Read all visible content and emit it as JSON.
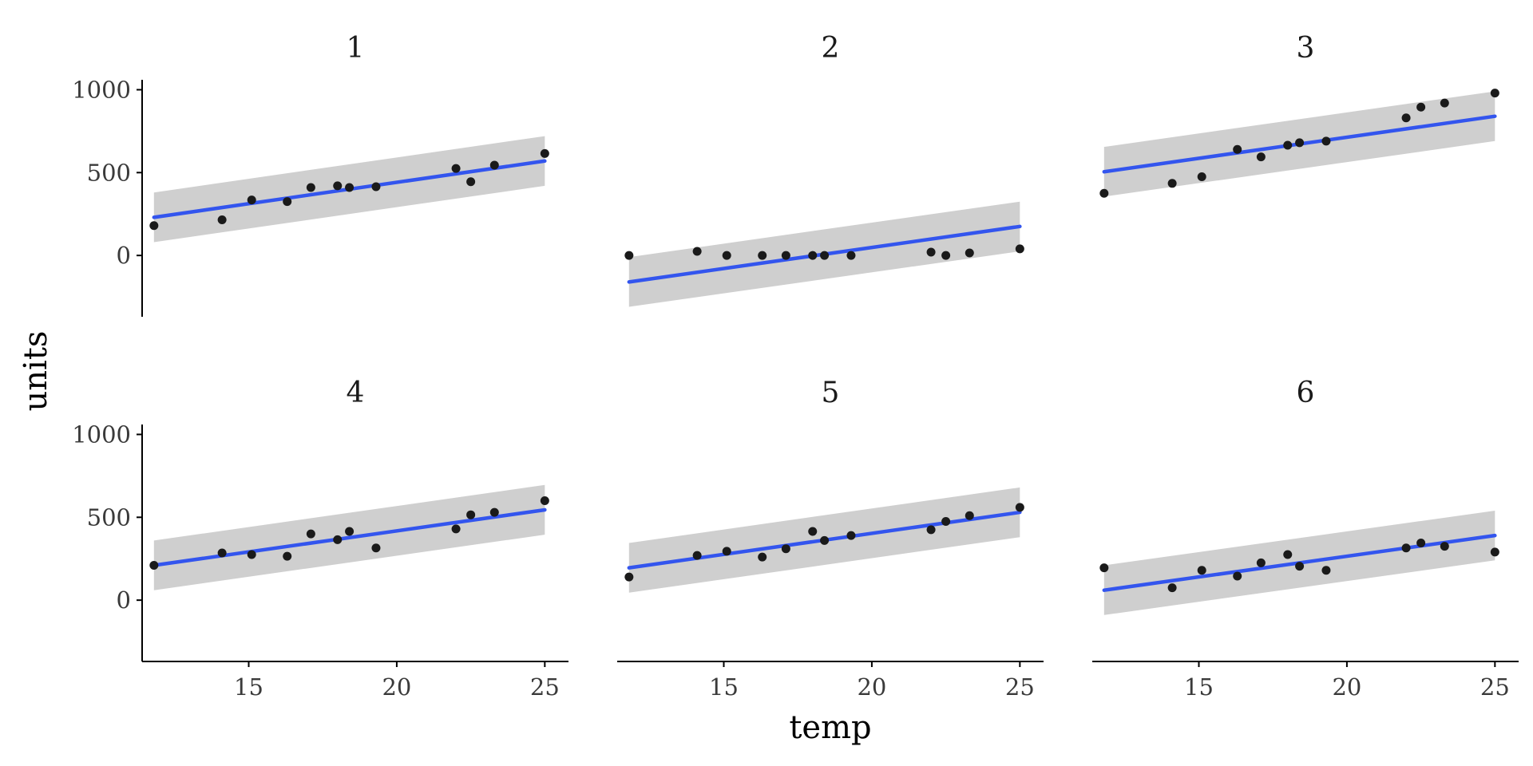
{
  "chart_data": {
    "type": "scatter",
    "xlabel": "temp",
    "ylabel": "units",
    "xlim": [
      11.4,
      25.8
    ],
    "ylim": [
      -370,
      1060
    ],
    "x_ticks": [
      15,
      20,
      25
    ],
    "y_ticks": [
      0,
      500,
      1000
    ],
    "grid": false,
    "colors": {
      "points": "#1a1a1a",
      "fit": "#3355ee",
      "band": "#cfcfcf"
    },
    "x": [
      11.8,
      14.1,
      15.1,
      16.3,
      17.1,
      18.0,
      18.4,
      19.3,
      22.0,
      22.5,
      23.3,
      25.0
    ],
    "panels": [
      {
        "title": "1",
        "y": [
          180,
          215,
          335,
          325,
          410,
          420,
          410,
          415,
          525,
          445,
          545,
          615
        ],
        "fit": [
          230,
          570
        ],
        "band_halfwidth": 150
      },
      {
        "title": "2",
        "y": [
          0,
          25,
          0,
          0,
          0,
          0,
          0,
          0,
          20,
          0,
          15,
          40
        ],
        "fit": [
          -160,
          175
        ],
        "band_halfwidth": 150
      },
      {
        "title": "3",
        "y": [
          375,
          435,
          475,
          640,
          595,
          665,
          680,
          690,
          830,
          895,
          920,
          980
        ],
        "fit": [
          505,
          840
        ],
        "band_halfwidth": 150
      },
      {
        "title": "4",
        "y": [
          210,
          285,
          275,
          265,
          400,
          365,
          415,
          315,
          430,
          515,
          530,
          600
        ],
        "fit": [
          210,
          545
        ],
        "band_halfwidth": 150
      },
      {
        "title": "5",
        "y": [
          140,
          270,
          295,
          260,
          310,
          415,
          360,
          390,
          425,
          475,
          510,
          560
        ],
        "fit": [
          195,
          530
        ],
        "band_halfwidth": 150
      },
      {
        "title": "6",
        "y": [
          195,
          75,
          180,
          145,
          225,
          275,
          205,
          180,
          315,
          345,
          325,
          290
        ],
        "fit": [
          60,
          390
        ],
        "band_halfwidth": 150
      }
    ]
  }
}
